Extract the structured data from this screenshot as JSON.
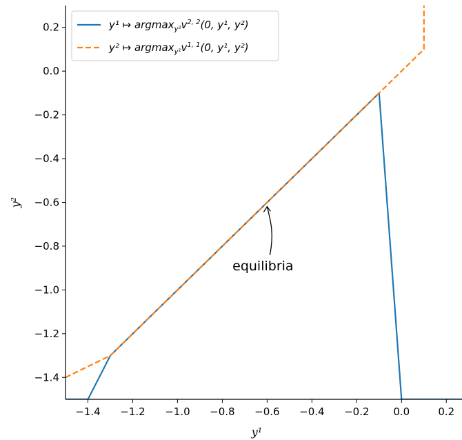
{
  "chart_data": {
    "type": "line",
    "title": "",
    "xlabel": "y¹",
    "ylabel": "y²",
    "xlim": [
      -1.5,
      0.27
    ],
    "ylim": [
      -1.5,
      0.3
    ],
    "x_ticks": [
      -1.4,
      -1.2,
      -1.0,
      -0.8,
      -0.6,
      -0.4,
      -0.2,
      0.0,
      0.2
    ],
    "x_tick_labels": [
      "−1.4",
      "−1.2",
      "−1.0",
      "−0.8",
      "−0.6",
      "−0.4",
      "−0.2",
      "0.0",
      "0.2"
    ],
    "y_ticks": [
      0.2,
      0.0,
      -0.2,
      -0.4,
      -0.6,
      -0.8,
      -1.0,
      -1.2,
      -1.4
    ],
    "y_tick_labels": [
      "0.2",
      "0.0",
      "−0.2",
      "−0.4",
      "−0.6",
      "−0.8",
      "−1.0",
      "−1.2",
      "−1.4"
    ],
    "grid": false,
    "legend_position": "top-left",
    "series": [
      {
        "name": "y¹ ↦ argmax_{y²} v^{2,2}(0, y¹, y²)",
        "legend_main": "y¹ ↦ argmax",
        "legend_sub": "y²",
        "legend_sup": "2, 2",
        "legend_tail": "(0, y¹, y²)",
        "color": "#1f77b4",
        "style": "solid",
        "x": [
          -1.5,
          -1.4,
          -1.3,
          -0.1,
          0.0,
          0.27
        ],
        "y": [
          -1.5,
          -1.5,
          -1.3,
          -0.1,
          -1.5,
          -1.5
        ]
      },
      {
        "name": "y² ↦ argmax_{y¹} v^{1,1}(0, y¹, y²)",
        "legend_main": "y² ↦ argmax",
        "legend_sub": "y¹",
        "legend_sup": "1, 1",
        "legend_tail": "(0, y¹, y²)",
        "color": "#ff7f0e",
        "style": "dashed",
        "x": [
          -1.5,
          -1.3,
          0.1,
          0.1
        ],
        "y": [
          -1.4,
          -1.3,
          0.1,
          0.3
        ]
      }
    ],
    "annotations": [
      {
        "text": "equilibria",
        "point": [
          -0.6,
          -0.6
        ],
        "text_pos": [
          -0.6,
          -0.91
        ]
      }
    ]
  }
}
